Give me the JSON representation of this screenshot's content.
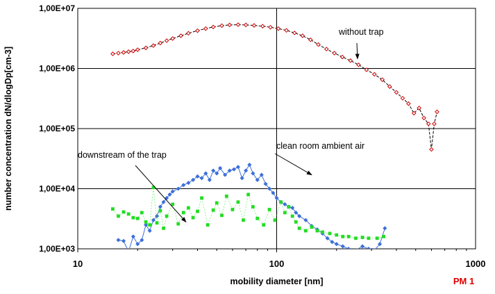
{
  "chart_data": {
    "type": "line",
    "x_scale": "log",
    "y_scale": "log",
    "xlim": [
      10,
      1000
    ],
    "ylim": [
      1000,
      10000000
    ],
    "grid": true,
    "xlabel": "mobility diameter [nm]",
    "ylabel": "number concentration dN/dlogDp[cm-3]",
    "x_ticks": [
      {
        "value": 10,
        "label": "10"
      },
      {
        "value": 100,
        "label": "100"
      },
      {
        "value": 1000,
        "label": "1000"
      }
    ],
    "y_ticks": [
      {
        "value": 1000,
        "label": "1,00E+03"
      },
      {
        "value": 10000,
        "label": "1,00E+04"
      },
      {
        "value": 100000,
        "label": "1,00E+05"
      },
      {
        "value": 1000000,
        "label": "1,00E+06"
      },
      {
        "value": 10000000,
        "label": "1,00E+07"
      }
    ],
    "series": [
      {
        "color": "#cc0000",
        "marker": "open-diamond",
        "line": "dashed",
        "points": [
          [
            15,
            1750000
          ],
          [
            16,
            1800000
          ],
          [
            17,
            1850000
          ],
          [
            18,
            1900000
          ],
          [
            19,
            1950000
          ],
          [
            20,
            2050000
          ],
          [
            22,
            2200000
          ],
          [
            24,
            2400000
          ],
          [
            26,
            2650000
          ],
          [
            28,
            2900000
          ],
          [
            30,
            3150000
          ],
          [
            33,
            3500000
          ],
          [
            36,
            3850000
          ],
          [
            40,
            4250000
          ],
          [
            44,
            4600000
          ],
          [
            48,
            4900000
          ],
          [
            53,
            5150000
          ],
          [
            58,
            5300000
          ],
          [
            64,
            5350000
          ],
          [
            70,
            5300000
          ],
          [
            77,
            5200000
          ],
          [
            85,
            5050000
          ],
          [
            93,
            4850000
          ],
          [
            102,
            4600000
          ],
          [
            112,
            4300000
          ],
          [
            123,
            3900000
          ],
          [
            135,
            3500000
          ],
          [
            148,
            3000000
          ],
          [
            162,
            2500000
          ],
          [
            178,
            2100000
          ],
          [
            195,
            1800000
          ],
          [
            214,
            1550000
          ],
          [
            235,
            1350000
          ],
          [
            258,
            1150000
          ],
          [
            283,
            950000
          ],
          [
            310,
            800000
          ],
          [
            340,
            650000
          ],
          [
            370,
            500000
          ],
          [
            400,
            400000
          ],
          [
            430,
            320000
          ],
          [
            460,
            260000
          ],
          [
            490,
            180000
          ],
          [
            520,
            220000
          ],
          [
            550,
            150000
          ],
          [
            580,
            120000
          ],
          [
            600,
            45000
          ],
          [
            620,
            120000
          ],
          [
            640,
            190000
          ]
        ]
      },
      {
        "color": "#3c6fd8",
        "marker": "filled-diamond",
        "line": "solid",
        "points": [
          [
            16,
            1400
          ],
          [
            17,
            1350
          ],
          [
            18,
            900
          ],
          [
            19,
            1600
          ],
          [
            20,
            1200
          ],
          [
            21,
            1400
          ],
          [
            22,
            2500
          ],
          [
            23,
            2000
          ],
          [
            24,
            3000
          ],
          [
            25,
            3500
          ],
          [
            26,
            5000
          ],
          [
            27,
            6000
          ],
          [
            28,
            7000
          ],
          [
            29,
            8000
          ],
          [
            30,
            9000
          ],
          [
            32,
            10000
          ],
          [
            34,
            11500
          ],
          [
            36,
            12500
          ],
          [
            38,
            14000
          ],
          [
            40,
            16000
          ],
          [
            42,
            15000
          ],
          [
            44,
            18000
          ],
          [
            46,
            14000
          ],
          [
            48,
            20000
          ],
          [
            50,
            18000
          ],
          [
            52,
            22000
          ],
          [
            55,
            17000
          ],
          [
            58,
            20000
          ],
          [
            61,
            21000
          ],
          [
            64,
            23000
          ],
          [
            67,
            15000
          ],
          [
            70,
            20000
          ],
          [
            73,
            25000
          ],
          [
            76,
            18000
          ],
          [
            80,
            14000
          ],
          [
            84,
            17000
          ],
          [
            88,
            12000
          ],
          [
            92,
            10000
          ],
          [
            96,
            8500
          ],
          [
            100,
            7000
          ],
          [
            105,
            6000
          ],
          [
            110,
            5500
          ],
          [
            115,
            5000
          ],
          [
            120,
            4800
          ],
          [
            125,
            4000
          ],
          [
            130,
            3500
          ],
          [
            140,
            3000
          ],
          [
            150,
            2400
          ],
          [
            160,
            2100
          ],
          [
            170,
            1800
          ],
          [
            180,
            1500
          ],
          [
            190,
            1300
          ],
          [
            200,
            1200
          ],
          [
            215,
            1100
          ],
          [
            230,
            1000
          ],
          [
            250,
            950
          ],
          [
            270,
            1100
          ],
          [
            290,
            1000
          ],
          [
            310,
            950
          ],
          [
            330,
            1200
          ],
          [
            350,
            2200
          ]
        ]
      },
      {
        "color": "#22dd22",
        "marker": "filled-square",
        "line": "dotted",
        "points": [
          [
            15,
            4600
          ],
          [
            16,
            3500
          ],
          [
            17,
            4100
          ],
          [
            18,
            3800
          ],
          [
            19,
            3300
          ],
          [
            20,
            3200
          ],
          [
            21,
            4000
          ],
          [
            22,
            2800
          ],
          [
            23,
            2500
          ],
          [
            24,
            10500
          ],
          [
            25,
            2700
          ],
          [
            26,
            4300
          ],
          [
            27,
            2200
          ],
          [
            28,
            3500
          ],
          [
            30,
            5500
          ],
          [
            32,
            2600
          ],
          [
            34,
            4000
          ],
          [
            36,
            4800
          ],
          [
            38,
            3300
          ],
          [
            40,
            4200
          ],
          [
            42,
            7000
          ],
          [
            45,
            2500
          ],
          [
            48,
            4400
          ],
          [
            50,
            5800
          ],
          [
            53,
            3600
          ],
          [
            56,
            7500
          ],
          [
            60,
            4500
          ],
          [
            64,
            6000
          ],
          [
            68,
            3000
          ],
          [
            72,
            8000
          ],
          [
            76,
            5000
          ],
          [
            80,
            3200
          ],
          [
            86,
            2500
          ],
          [
            92,
            4500
          ],
          [
            98,
            3000
          ],
          [
            105,
            6000
          ],
          [
            110,
            4000
          ],
          [
            115,
            5000
          ],
          [
            120,
            3500
          ],
          [
            125,
            2800
          ],
          [
            130,
            2200
          ],
          [
            140,
            2000
          ],
          [
            150,
            2300
          ],
          [
            160,
            2000
          ],
          [
            170,
            1900
          ],
          [
            185,
            1800
          ],
          [
            200,
            1700
          ],
          [
            215,
            1600
          ],
          [
            230,
            1600
          ],
          [
            250,
            1500
          ],
          [
            270,
            1550
          ],
          [
            290,
            1500
          ],
          [
            320,
            1500
          ],
          [
            345,
            1600
          ]
        ]
      }
    ],
    "annotations": [
      {
        "text": "without trap",
        "arrow_to": [
          255,
          1450000
        ]
      },
      {
        "text": "clean room ambient air",
        "arrow_to": [
          150,
          17000
        ]
      },
      {
        "text": "downstream of the trap",
        "arrow_to": [
          35,
          2800
        ]
      }
    ],
    "badge": {
      "text": "PM 1",
      "color": "#dd0000"
    }
  }
}
